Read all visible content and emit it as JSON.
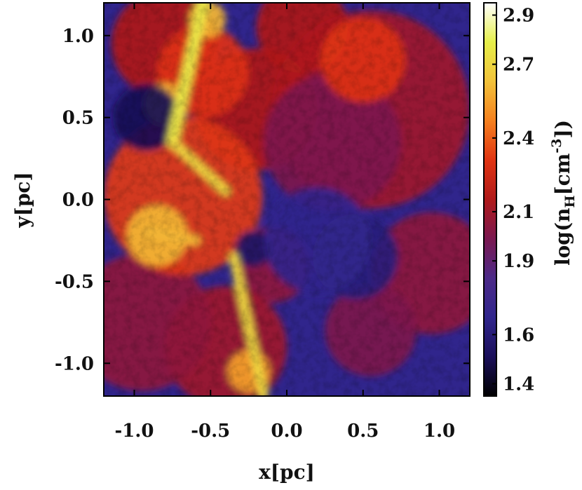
{
  "chart_data": {
    "type": "heatmap",
    "title": "",
    "xlabel": "x[pc]",
    "ylabel": "y[pc]",
    "xlim": [
      -1.2,
      1.2
    ],
    "ylim": [
      -1.2,
      1.2
    ],
    "x_ticks": [
      "-1.0",
      "-0.5",
      "0.0",
      "0.5",
      "1.0"
    ],
    "x_tick_values": [
      -1.0,
      -0.5,
      0.0,
      0.5,
      1.0
    ],
    "y_ticks": [
      "1.0",
      "0.5",
      "0.0",
      "-0.5",
      "-1.0"
    ],
    "y_tick_values": [
      1.0,
      0.5,
      0.0,
      -0.5,
      -1.0
    ],
    "colorbar": {
      "label": "log(n_H [cm^-3])",
      "label_main": "log(n",
      "label_sub": "H",
      "label_mid": "[cm",
      "label_sup": "-3",
      "label_end": "])",
      "range": [
        1.35,
        2.95
      ],
      "ticks": [
        "2.9",
        "2.7",
        "2.4",
        "2.1",
        "1.9",
        "1.6",
        "1.4"
      ],
      "tick_values": [
        2.9,
        2.7,
        2.4,
        2.1,
        1.9,
        1.6,
        1.4
      ],
      "colormap": [
        "#000000",
        "#1a0f5a",
        "#30258c",
        "#4c2a88",
        "#7a1850",
        "#b01a1a",
        "#e03412",
        "#f5801e",
        "#f2c23a",
        "#e6ef4a",
        "#ffffff"
      ]
    },
    "regions": [
      {
        "cx": 0.55,
        "cy": 0.55,
        "r": 0.65,
        "value": 2.1
      },
      {
        "cx": -0.2,
        "cy": 0.55,
        "r": 0.4,
        "value": 2.15
      },
      {
        "cx": -0.1,
        "cy": -0.4,
        "r": 0.25,
        "value": 2.05
      },
      {
        "cx": 0.95,
        "cy": -0.45,
        "r": 0.4,
        "value": 2.05
      },
      {
        "cx": 0.55,
        "cy": -0.8,
        "r": 0.3,
        "value": 2.0
      },
      {
        "cx": -0.4,
        "cy": -0.9,
        "r": 0.4,
        "value": 2.1
      },
      {
        "cx": -0.95,
        "cy": -0.75,
        "r": 0.45,
        "value": 2.05
      },
      {
        "cx": -0.8,
        "cy": 0.95,
        "r": 0.35,
        "value": 2.15
      },
      {
        "cx": 0.1,
        "cy": 1.05,
        "r": 0.3,
        "value": 2.15
      },
      {
        "cx": 0.3,
        "cy": 0.35,
        "r": 0.45,
        "value": 2.0
      },
      {
        "cx": -0.68,
        "cy": 0.02,
        "r": 0.52,
        "value": 2.32
      },
      {
        "cx": -0.55,
        "cy": 0.78,
        "r": 0.3,
        "value": 2.3
      },
      {
        "cx": 0.5,
        "cy": 0.85,
        "r": 0.28,
        "value": 2.3
      },
      {
        "cx": -0.85,
        "cy": -0.22,
        "r": 0.2,
        "value": 2.6
      },
      {
        "cx": -0.8,
        "cy": 0.58,
        "r": 0.14,
        "value": 2.6
      },
      {
        "cx": -0.52,
        "cy": 1.1,
        "r": 0.12,
        "value": 2.6
      },
      {
        "cx": -0.25,
        "cy": -1.05,
        "r": 0.14,
        "value": 2.55
      },
      {
        "cx": -0.92,
        "cy": 0.5,
        "r": 0.22,
        "value": 1.5
      },
      {
        "cx": 0.45,
        "cy": -0.35,
        "r": 0.28,
        "value": 1.62
      },
      {
        "cx": -0.22,
        "cy": -0.3,
        "r": 0.12,
        "value": 1.55
      },
      {
        "cx": 0.2,
        "cy": -0.25,
        "r": 0.35,
        "value": 1.68
      }
    ],
    "ridges": [
      {
        "x1": -0.55,
        "y1": 1.2,
        "x2": -0.75,
        "y2": 0.35,
        "w": 0.08,
        "value": 2.75
      },
      {
        "x1": -0.75,
        "y1": 0.35,
        "x2": -0.4,
        "y2": 0.05,
        "w": 0.06,
        "value": 2.7
      },
      {
        "x1": -0.35,
        "y1": -0.35,
        "x2": -0.15,
        "y2": -1.2,
        "w": 0.06,
        "value": 2.7
      },
      {
        "x1": -0.9,
        "y1": -0.2,
        "x2": -0.6,
        "y2": -0.25,
        "w": 0.07,
        "value": 2.6
      }
    ]
  }
}
